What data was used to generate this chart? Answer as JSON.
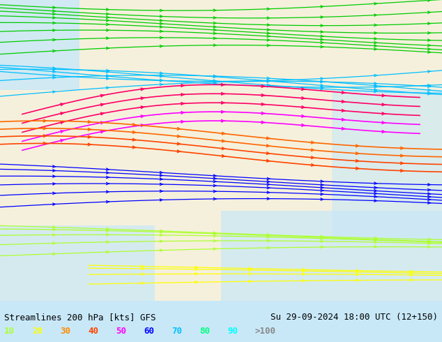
{
  "title_left": "Streamlines 200 hPa [kts] GFS",
  "title_right": "Su 29-09-2024 18:00 UTC (12+150)",
  "legend_labels": [
    "10",
    "20",
    "30",
    "40",
    "50",
    "60",
    "70",
    "80",
    "90",
    ">100"
  ],
  "legend_colors": [
    "#adff2f",
    "#ffff00",
    "#ff8c00",
    "#ff4500",
    "#ff00ff",
    "#0000ff",
    "#00bfff",
    "#00ff7f",
    "#00ffff",
    "#ffffff"
  ],
  "bg_color": "#c8e8f8",
  "land_color": "#f5f0dc",
  "text_color": "#000000",
  "font_family": "monospace",
  "fig_width": 6.34,
  "fig_height": 4.9,
  "dpi": 100
}
